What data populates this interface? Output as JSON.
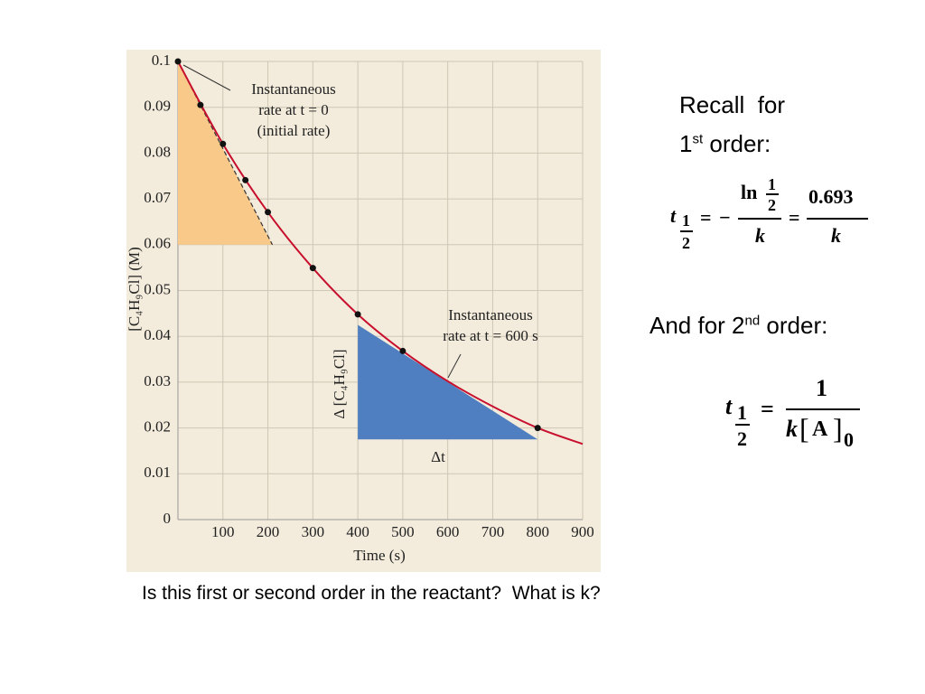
{
  "chart_data": {
    "type": "scatter",
    "x": [
      0,
      50,
      100,
      150,
      200,
      300,
      400,
      500,
      800
    ],
    "values": [
      0.1,
      0.0905,
      0.082,
      0.0741,
      0.0671,
      0.0549,
      0.0448,
      0.0368,
      0.02
    ],
    "color": "#111111",
    "fit_curve": {
      "x": [
        0,
        100,
        200,
        300,
        400,
        500,
        600,
        700,
        800,
        900
      ],
      "values": [
        0.1,
        0.082,
        0.0671,
        0.0549,
        0.0448,
        0.0368,
        0.0302,
        0.0247,
        0.02,
        0.0165
      ],
      "color": "#c8102e"
    },
    "tangents": [
      {
        "x": [
          0,
          0,
          210
        ],
        "y": [
          0.1,
          0.06,
          0.06
        ],
        "color": "#f9c98a"
      },
      {
        "x": [
          400,
          400,
          800
        ],
        "y": [
          0.0425,
          0.0175,
          0.0175
        ],
        "color": "#4f7fc0"
      }
    ],
    "annotations": [
      {
        "lines": [
          "Instantaneous",
          "rate at t = 0",
          "(initial rate)"
        ]
      },
      {
        "lines": [
          "Instantaneous",
          "rate at t = 600 s"
        ]
      },
      {
        "lines": [
          "Δ [C₄H₉Cl]"
        ]
      },
      {
        "lines": [
          "Δt"
        ]
      }
    ],
    "xlabel": "Time (s)",
    "ylabel": "[C₄H₉Cl] (M)",
    "xlim": [
      0,
      900
    ],
    "xticks": [
      100,
      200,
      300,
      400,
      500,
      600,
      700,
      800,
      900
    ],
    "ylim": [
      0,
      0.1
    ],
    "yticks": [
      0,
      0.01,
      0.02,
      0.03,
      0.04,
      0.05,
      0.06,
      0.07,
      0.08,
      0.09,
      0.1
    ],
    "grid": true
  },
  "slide": {
    "recall": "Recall  for",
    "first_order": {
      "num": "1",
      "sup": "st",
      "rest": " order:"
    },
    "formula1": {
      "t": "t",
      "sub_num": "1",
      "sub_den": "2",
      "eq": "=",
      "minus": "−",
      "ln": "ln",
      "ln_num": "1",
      "ln_den": "2",
      "k": "k",
      "eq2": "=",
      "num": "0.693",
      "k2": "k"
    },
    "second_order": {
      "pre": "And for 2",
      "sup": "nd",
      "rest": " order:"
    },
    "formula2": {
      "t": "t",
      "sub_num": "1",
      "sub_den": "2",
      "eq": "=",
      "num": "1",
      "k": "k",
      "lb": "[",
      "A": "A",
      "rb": "]",
      "zero": "0"
    },
    "question": "Is this first or second order in the reactant?  What is k?"
  }
}
